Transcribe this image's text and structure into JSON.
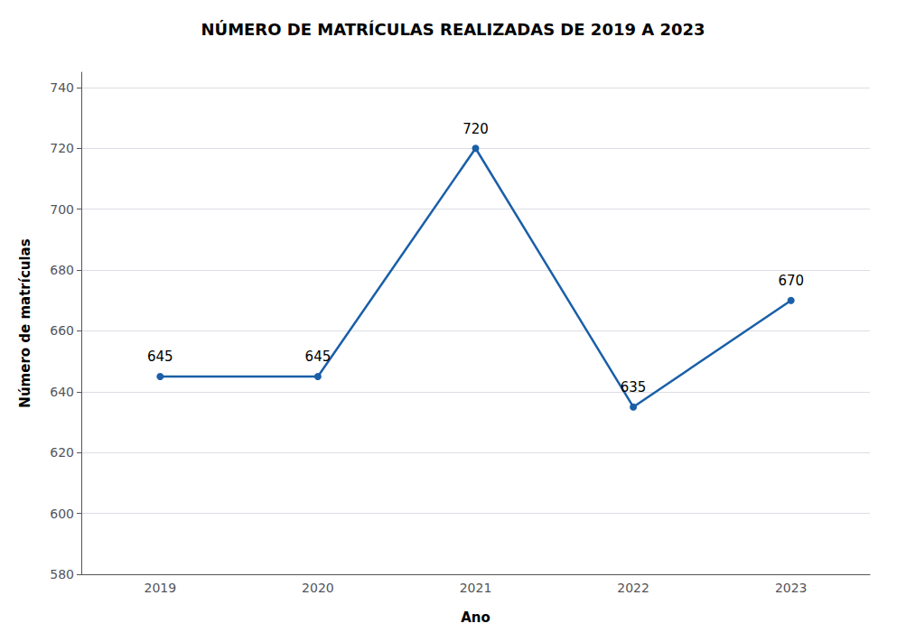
{
  "chart_data": {
    "type": "line",
    "title": "NÚMERO DE MATRÍCULAS REALIZADAS DE 2019 A 2023",
    "xlabel": "Ano",
    "ylabel": "Número de matrículas",
    "categories": [
      "2019",
      "2020",
      "2021",
      "2022",
      "2023"
    ],
    "values": [
      645,
      645,
      720,
      635,
      670
    ],
    "color": "#1a5fa8",
    "marker": "circle",
    "ylim": [
      580,
      745
    ],
    "yticks": [
      580,
      600,
      620,
      640,
      660,
      680,
      700,
      720,
      740
    ],
    "grid": true,
    "data_labels": true
  }
}
